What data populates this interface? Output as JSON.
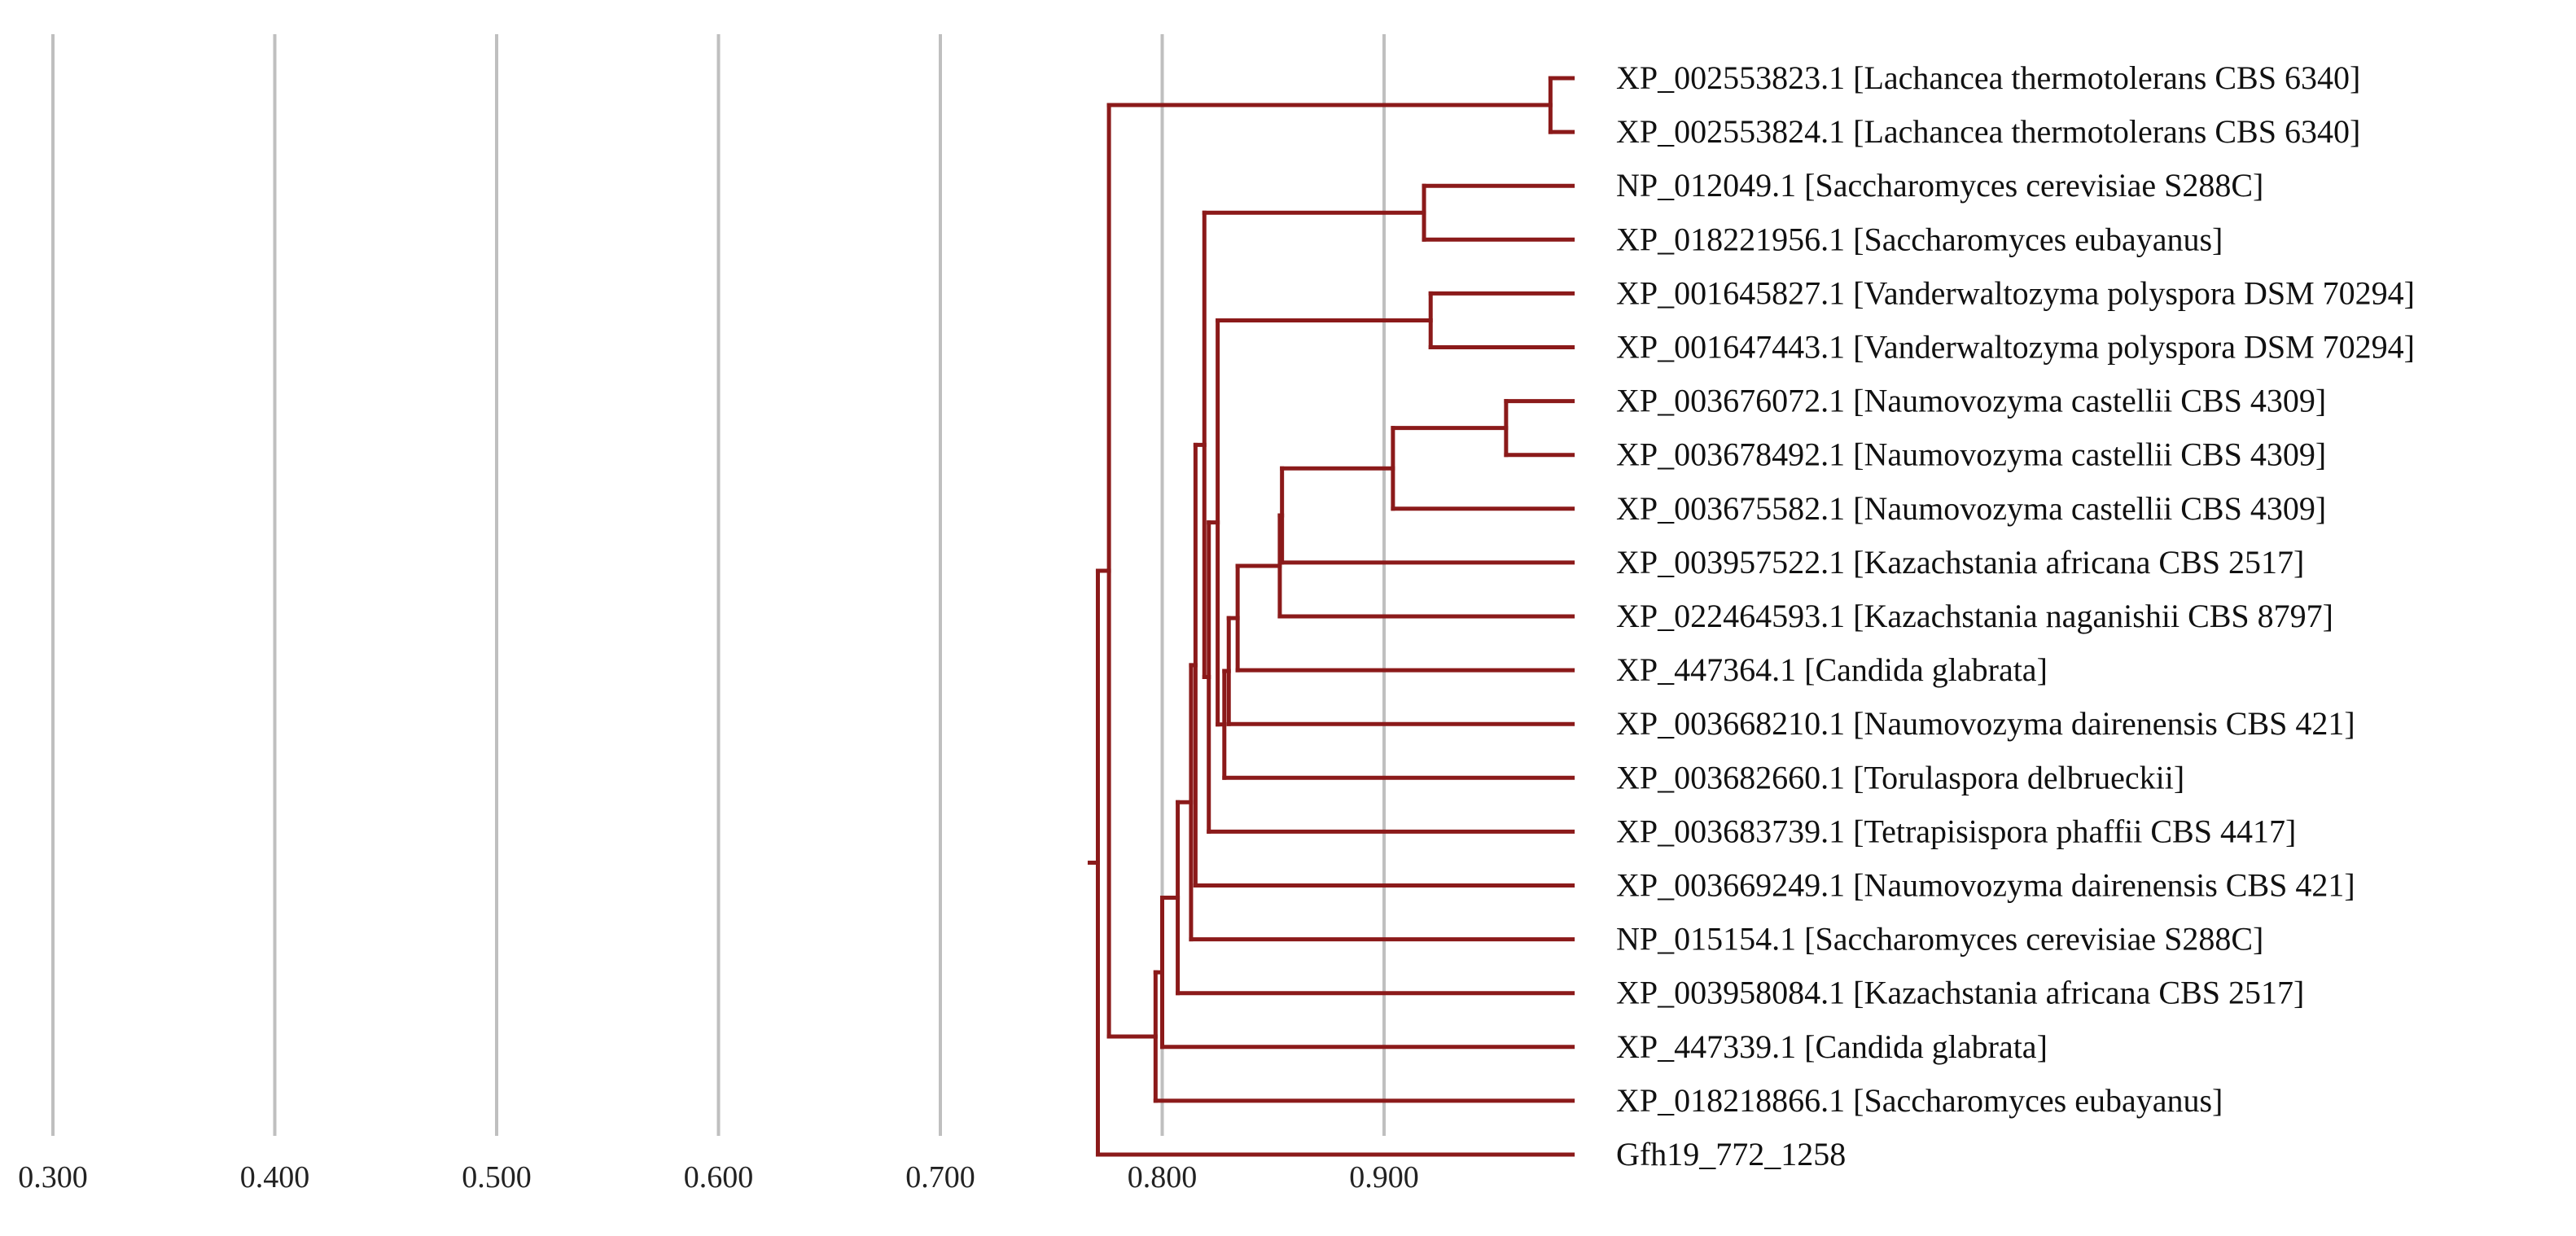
{
  "colors": {
    "branch": "#8b1a1a",
    "grid": "#bfbfbf",
    "label": "#111111",
    "highlight": "#e8171c"
  },
  "axis": {
    "range": [
      0.25,
      1.0
    ],
    "ticks": [
      {
        "value": 0.3,
        "label": "0.300"
      },
      {
        "value": 0.4,
        "label": "0.400"
      },
      {
        "value": 0.5,
        "label": "0.500"
      },
      {
        "value": 0.6,
        "label": "0.600"
      },
      {
        "value": 0.7,
        "label": "0.700"
      },
      {
        "value": 0.8,
        "label": "0.800"
      },
      {
        "value": 0.9,
        "label": "0.900"
      }
    ],
    "gridlines": [
      0.3,
      0.4,
      0.5,
      0.6,
      0.7,
      0.8,
      0.9
    ]
  },
  "tree": {
    "leaf_tip": 0.985,
    "leaves": [
      {
        "label": "XP_002553823.1 [Lachancea thermotolerans CBS 6340]"
      },
      {
        "label": "XP_002553824.1 [Lachancea thermotolerans CBS 6340]"
      },
      {
        "label": "NP_012049.1 [Saccharomyces cerevisiae S288C]"
      },
      {
        "label": "XP_018221956.1 [Saccharomyces eubayanus]"
      },
      {
        "label": "XP_001645827.1 [Vanderwaltozyma polyspora DSM 70294]"
      },
      {
        "label": "XP_001647443.1 [Vanderwaltozyma polyspora DSM 70294]"
      },
      {
        "label": "XP_003676072.1 [Naumovozyma castellii CBS 4309]"
      },
      {
        "label": "XP_003678492.1 [Naumovozyma castellii CBS 4309]"
      },
      {
        "label": "XP_003675582.1 [Naumovozyma castellii CBS 4309]"
      },
      {
        "label": "XP_003957522.1 [Kazachstania africana CBS 2517]"
      },
      {
        "label": "XP_022464593.1 [Kazachstania naganishii CBS 8797]"
      },
      {
        "label": "XP_447364.1 [Candida glabrata]"
      },
      {
        "label": "XP_003668210.1 [Naumovozyma dairenensis CBS 421]"
      },
      {
        "label": "XP_003682660.1 [Torulaspora delbrueckii]"
      },
      {
        "label": "XP_003683739.1 [Tetrapisispora phaffii CBS 4417]"
      },
      {
        "label": "XP_003669249.1 [Naumovozyma dairenensis CBS 421]"
      },
      {
        "label": "NP_015154.1 [Saccharomyces cerevisiae S288C]",
        "highlight": true
      },
      {
        "label": "XP_003958084.1 [Kazachstania africana CBS 2517]"
      },
      {
        "label": "XP_447339.1 [Candida glabrata]"
      },
      {
        "label": "XP_018218866.1 [Saccharomyces eubayanus]"
      },
      {
        "label": "Gfh19_772_1258"
      }
    ],
    "nodes": [
      {
        "id": "n_lach",
        "h": 0.975,
        "children": [
          0,
          1
        ]
      },
      {
        "id": "n_sc12",
        "h": 0.918,
        "children": [
          2,
          3
        ]
      },
      {
        "id": "n_vp",
        "h": 0.921,
        "children": [
          4,
          5
        ]
      },
      {
        "id": "n_nc67",
        "h": 0.955,
        "children": [
          6,
          7
        ]
      },
      {
        "id": "n_nc3",
        "h": 0.904,
        "children": [
          "n_nc67",
          8
        ]
      },
      {
        "id": "n_ka",
        "h": 0.854,
        "children": [
          "n_nc3",
          9
        ]
      },
      {
        "id": "n_kn",
        "h": 0.853,
        "children": [
          "n_ka",
          10
        ]
      },
      {
        "id": "n_cg",
        "h": 0.834,
        "children": [
          "n_kn",
          11
        ]
      },
      {
        "id": "n_nd",
        "h": 0.83,
        "children": [
          "n_cg",
          12
        ]
      },
      {
        "id": "n_td",
        "h": 0.828,
        "children": [
          "n_nd",
          13
        ]
      },
      {
        "id": "n_vp2",
        "h": 0.825,
        "children": [
          "n_vp",
          "n_td"
        ]
      },
      {
        "id": "n_tp",
        "h": 0.821,
        "children": [
          "n_vp2",
          14
        ]
      },
      {
        "id": "n_sc2",
        "h": 0.819,
        "children": [
          "n_sc12",
          "n_tp"
        ]
      },
      {
        "id": "n_nd2",
        "h": 0.815,
        "children": [
          "n_sc2",
          15
        ]
      },
      {
        "id": "n_np",
        "h": 0.813,
        "children": [
          "n_nd2",
          16
        ]
      },
      {
        "id": "n_ka2",
        "h": 0.807,
        "children": [
          "n_np",
          17
        ]
      },
      {
        "id": "n_cg2",
        "h": 0.8,
        "children": [
          "n_ka2",
          18
        ]
      },
      {
        "id": "n_se",
        "h": 0.797,
        "children": [
          "n_cg2",
          19
        ]
      },
      {
        "id": "n_lach2",
        "h": 0.776,
        "children": [
          "n_lach",
          "n_se"
        ]
      },
      {
        "id": "n_root",
        "h": 0.771,
        "children": [
          "n_lach2",
          20
        ]
      }
    ]
  }
}
